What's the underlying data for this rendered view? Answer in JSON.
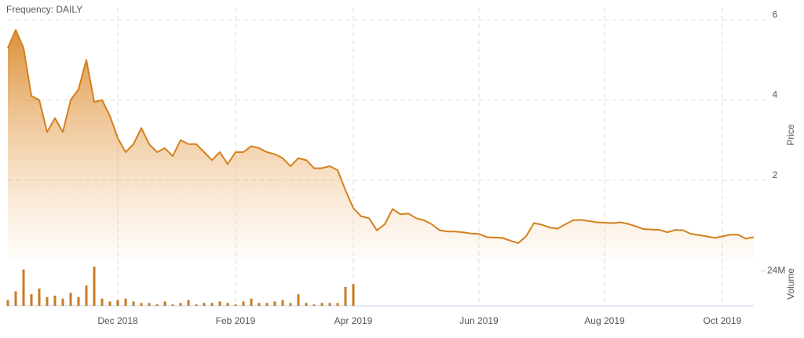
{
  "chart_data": {
    "type": "area",
    "annotation": "Frequency: DAILY",
    "y_label": "Price",
    "y2_label": "Volume",
    "categories": [
      null,
      null,
      null,
      null,
      null,
      null,
      null,
      null,
      null,
      null,
      null,
      null,
      null,
      null,
      "Dec 2018",
      null,
      null,
      null,
      null,
      null,
      null,
      null,
      null,
      null,
      null,
      null,
      null,
      null,
      null,
      "Feb 2019",
      null,
      null,
      null,
      null,
      null,
      null,
      null,
      null,
      null,
      null,
      null,
      null,
      null,
      null,
      "Apr 2019",
      null,
      null,
      null,
      null,
      null,
      null,
      null,
      null,
      null,
      null,
      null,
      null,
      null,
      null,
      null,
      "Jun 2019",
      null,
      null,
      null,
      null,
      null,
      null,
      null,
      null,
      null,
      null,
      null,
      null,
      null,
      null,
      null,
      "Aug 2019",
      null,
      null,
      null,
      null,
      null,
      null,
      null,
      null,
      null,
      null,
      null,
      null,
      null,
      null,
      "Oct 2019",
      null,
      null,
      null,
      null
    ],
    "series": [
      {
        "name": "Price",
        "color": "#d4801e",
        "values": [
          5.3,
          5.75,
          5.3,
          4.1,
          4.0,
          3.2,
          3.55,
          3.2,
          4.0,
          4.27,
          5.0,
          3.95,
          4.0,
          3.6,
          3.05,
          2.7,
          2.9,
          3.3,
          2.9,
          2.7,
          2.8,
          2.6,
          3.0,
          2.9,
          2.9,
          2.7,
          2.5,
          2.7,
          2.4,
          2.7,
          2.7,
          2.85,
          2.8,
          2.7,
          2.65,
          2.55,
          2.35,
          2.55,
          2.5,
          2.3,
          2.3,
          2.35,
          2.25,
          1.75,
          1.3,
          1.1,
          1.05,
          0.75,
          0.9,
          1.28,
          1.15,
          1.17,
          1.05,
          1.0,
          0.9,
          0.75,
          0.72,
          0.72,
          0.7,
          0.67,
          0.66,
          0.58,
          0.57,
          0.56,
          0.49,
          0.43,
          0.6,
          0.93,
          0.89,
          0.82,
          0.79,
          0.9,
          1.0,
          1.01,
          0.98,
          0.95,
          0.94,
          0.93,
          0.95,
          0.91,
          0.85,
          0.78,
          0.77,
          0.76,
          0.7,
          0.76,
          0.75,
          0.66,
          0.63,
          0.6,
          0.56,
          0.6,
          0.64,
          0.64,
          0.54,
          0.58
        ]
      },
      {
        "name": "Volume",
        "color": "#c97a22",
        "axis": "y2",
        "values": [
          4000000,
          10000000,
          25000000,
          8000000,
          12000000,
          6000000,
          7000000,
          5000000,
          9000000,
          6000000,
          14000000,
          27000000,
          5000000,
          3000000,
          4000000,
          5000000,
          3000000,
          2000000,
          2000000,
          1000000,
          3000000,
          1000000,
          2000000,
          4000000,
          1000000,
          2000000,
          2000000,
          3000000,
          2000000,
          1000000,
          3000000,
          5000000,
          2000000,
          2000000,
          3000000,
          4000000,
          2000000,
          8000000,
          2000000,
          1000000,
          2000000,
          2000000,
          2000000,
          13000000,
          15000000,
          0,
          0,
          0,
          0,
          0,
          0,
          0,
          0,
          0,
          0,
          0,
          0,
          0,
          0,
          0,
          0,
          0,
          0,
          0,
          0,
          0,
          0,
          0,
          0,
          0,
          0,
          0,
          0,
          0,
          0,
          0,
          0,
          0,
          0,
          0,
          0,
          0,
          0,
          0,
          0,
          0,
          0,
          0,
          0,
          0,
          0,
          0,
          0,
          0,
          0,
          0
        ]
      }
    ],
    "ylim": [
      0,
      6.3
    ],
    "yticks": [
      2,
      4,
      6
    ],
    "y2lim": [
      0,
      27000000
    ],
    "y2ticks": [
      {
        "value": 24000000,
        "label": "24M"
      }
    ],
    "grid": true
  }
}
